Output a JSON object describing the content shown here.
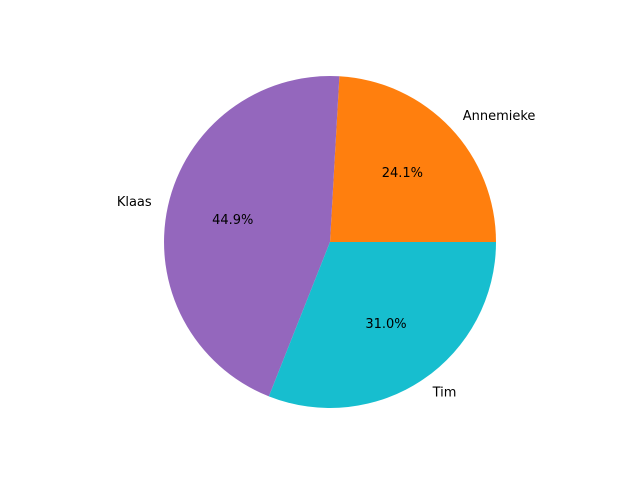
{
  "chart_data": {
    "type": "pie",
    "title": "",
    "slices": [
      {
        "label": "Annemieke",
        "value": 24.1,
        "pct_label": "24.1%",
        "color": "#ff7f0e"
      },
      {
        "label": "Klaas",
        "value": 44.9,
        "pct_label": "44.9%",
        "color": "#9467bd"
      },
      {
        "label": "Tim",
        "value": 31.0,
        "pct_label": "31.0%",
        "color": "#17becf"
      }
    ],
    "start_angle_deg": 0,
    "direction": "counterclockwise",
    "legend": "none"
  }
}
